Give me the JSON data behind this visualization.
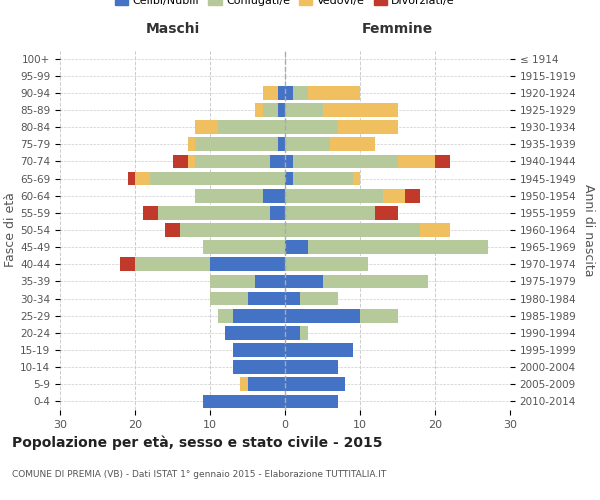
{
  "age_groups": [
    "0-4",
    "5-9",
    "10-14",
    "15-19",
    "20-24",
    "25-29",
    "30-34",
    "35-39",
    "40-44",
    "45-49",
    "50-54",
    "55-59",
    "60-64",
    "65-69",
    "70-74",
    "75-79",
    "80-84",
    "85-89",
    "90-94",
    "95-99",
    "100+"
  ],
  "birth_years": [
    "2010-2014",
    "2005-2009",
    "2000-2004",
    "1995-1999",
    "1990-1994",
    "1985-1989",
    "1980-1984",
    "1975-1979",
    "1970-1974",
    "1965-1969",
    "1960-1964",
    "1955-1959",
    "1950-1954",
    "1945-1949",
    "1940-1944",
    "1935-1939",
    "1930-1934",
    "1925-1929",
    "1920-1924",
    "1915-1919",
    "≤ 1914"
  ],
  "males": {
    "celibi": [
      11,
      5,
      7,
      7,
      8,
      7,
      5,
      4,
      10,
      0,
      0,
      2,
      3,
      0,
      2,
      1,
      0,
      1,
      1,
      0,
      0
    ],
    "coniugati": [
      0,
      0,
      0,
      0,
      0,
      2,
      5,
      6,
      10,
      11,
      14,
      15,
      9,
      18,
      10,
      11,
      9,
      2,
      0,
      0,
      0
    ],
    "vedovi": [
      0,
      1,
      0,
      0,
      0,
      0,
      0,
      0,
      0,
      0,
      0,
      0,
      0,
      2,
      1,
      1,
      3,
      1,
      2,
      0,
      0
    ],
    "divorziati": [
      0,
      0,
      0,
      0,
      0,
      0,
      0,
      0,
      2,
      0,
      2,
      2,
      0,
      1,
      2,
      0,
      0,
      0,
      0,
      0,
      0
    ]
  },
  "females": {
    "celibi": [
      7,
      8,
      7,
      9,
      2,
      10,
      2,
      5,
      0,
      3,
      0,
      0,
      0,
      1,
      1,
      0,
      0,
      0,
      1,
      0,
      0
    ],
    "coniugati": [
      0,
      0,
      0,
      0,
      1,
      5,
      5,
      14,
      11,
      24,
      18,
      12,
      13,
      8,
      14,
      6,
      7,
      5,
      2,
      0,
      0
    ],
    "vedovi": [
      0,
      0,
      0,
      0,
      0,
      0,
      0,
      0,
      0,
      0,
      4,
      0,
      3,
      1,
      5,
      6,
      8,
      10,
      7,
      0,
      0
    ],
    "divorziati": [
      0,
      0,
      0,
      0,
      0,
      0,
      0,
      0,
      0,
      0,
      0,
      3,
      2,
      0,
      2,
      0,
      0,
      0,
      0,
      0,
      0
    ]
  },
  "colors": {
    "celibi": "#4472c4",
    "coniugati": "#b5c99a",
    "vedovi": "#f0c060",
    "divorziati": "#c0392b"
  },
  "xlim": 30,
  "title": "Popolazione per età, sesso e stato civile - 2015",
  "subtitle": "COMUNE DI PREMIA (VB) - Dati ISTAT 1° gennaio 2015 - Elaborazione TUTTITALIA.IT",
  "ylabel_left": "Fasce di età",
  "ylabel_right": "Anni di nascita",
  "xlabel_left": "Maschi",
  "xlabel_right": "Femmine",
  "legend_labels": [
    "Celibi/Nubili",
    "Coniugati/e",
    "Vedovi/e",
    "Divorziati/e"
  ],
  "bg_color": "#ffffff",
  "grid_color": "#cccccc"
}
